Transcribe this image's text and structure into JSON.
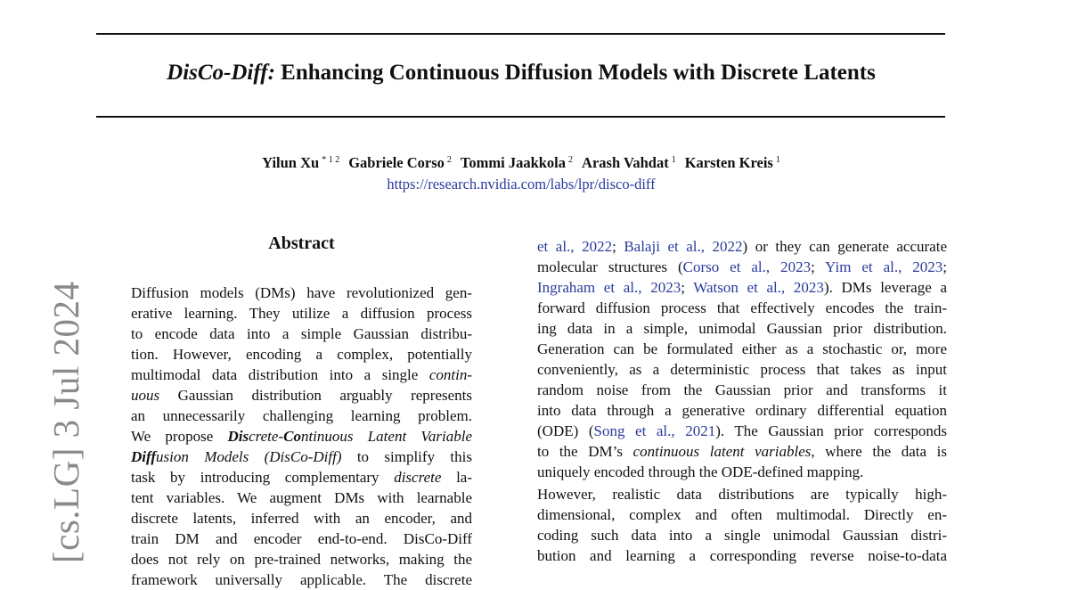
{
  "arxiv_stamp": "[cs.LG]  3 Jul 2024",
  "title": {
    "italic_part": "DisCo-Diff:",
    "rest": " Enhancing Continuous Diffusion Models with Discrete Latents"
  },
  "authors": [
    {
      "name": "Yilun Xu",
      "sup": "* 1 2"
    },
    {
      "name": "Gabriele Corso",
      "sup": "2"
    },
    {
      "name": "Tommi Jaakkola",
      "sup": "2"
    },
    {
      "name": "Arash Vahdat",
      "sup": "1"
    },
    {
      "name": "Karsten Kreis",
      "sup": "1"
    }
  ],
  "project_url": "https://research.nvidia.com/labs/lpr/disco-diff",
  "abstract_heading": "Abstract",
  "abstract_lines": [
    [
      [
        "n",
        "Diffusion models (DMs) have revolutionized gen-"
      ]
    ],
    [
      [
        "n",
        "erative learning. They utilize a diffusion process"
      ]
    ],
    [
      [
        "n",
        "to encode data into a simple Gaussian distribu-"
      ]
    ],
    [
      [
        "n",
        "tion. However, encoding a complex, potentially"
      ]
    ],
    [
      [
        "n",
        "multimodal data distribution into a single "
      ],
      [
        "i",
        "contin-"
      ]
    ],
    [
      [
        "i",
        "uous"
      ],
      [
        "n",
        " Gaussian distribution arguably represents"
      ]
    ],
    [
      [
        "n",
        "an unnecessarily challenging learning problem."
      ]
    ],
    [
      [
        "n",
        "We propose "
      ],
      [
        "bi",
        "Dis"
      ],
      [
        "i",
        "crete-"
      ],
      [
        "bi",
        "Co"
      ],
      [
        "i",
        "ntinuous Latent Variable"
      ]
    ],
    [
      [
        "bi",
        "Diff"
      ],
      [
        "i",
        "usion Models (DisCo-Diff)"
      ],
      [
        "n",
        " to simplify this"
      ]
    ],
    [
      [
        "n",
        "task by introducing complementary "
      ],
      [
        "i",
        "discrete"
      ],
      [
        "n",
        " la-"
      ]
    ],
    [
      [
        "n",
        "tent variables. We augment DMs with learnable"
      ]
    ],
    [
      [
        "n",
        "discrete latents, inferred with an encoder, and"
      ]
    ],
    [
      [
        "n",
        "train DM and encoder end-to-end.  DisCo-Diff"
      ]
    ],
    [
      [
        "n",
        "does not rely on pre-trained networks, making the"
      ]
    ],
    [
      [
        "n",
        "framework universally applicable.  The discrete"
      ]
    ]
  ],
  "intro_paragraphs": [
    [
      [
        [
          "c",
          "et al., 2022"
        ],
        [
          "n",
          "; "
        ],
        [
          "c",
          "Balaji et al., 2022"
        ],
        [
          "n",
          ") or they can generate accurate"
        ]
      ],
      [
        [
          "n",
          "molecular structures ("
        ],
        [
          "c",
          "Corso et al., 2023"
        ],
        [
          "n",
          "; "
        ],
        [
          "c",
          "Yim et al., 2023"
        ],
        [
          "n",
          ";"
        ]
      ],
      [
        [
          "c",
          "Ingraham et al., 2023"
        ],
        [
          "n",
          "; "
        ],
        [
          "c",
          "Watson et al., 2023"
        ],
        [
          "n",
          "). DMs leverage a"
        ]
      ],
      [
        [
          "n",
          "forward diffusion process that effectively encodes the train-"
        ]
      ],
      [
        [
          "n",
          "ing data in a simple, unimodal Gaussian prior distribution."
        ]
      ],
      [
        [
          "n",
          "Generation can be formulated either as a stochastic or, more"
        ]
      ],
      [
        [
          "n",
          "conveniently, as a deterministic process that takes as input"
        ]
      ],
      [
        [
          "n",
          "random noise from the Gaussian prior and transforms it"
        ]
      ],
      [
        [
          "n",
          "into data through a generative ordinary differential equation"
        ]
      ],
      [
        [
          "n",
          "(ODE) ("
        ],
        [
          "c",
          "Song et al., 2021"
        ],
        [
          "n",
          "). The Gaussian prior corresponds"
        ]
      ],
      [
        [
          "n",
          "to the DM’s "
        ],
        [
          "i",
          "continuous latent variables"
        ],
        [
          "n",
          ", where the data is"
        ]
      ],
      [
        [
          "n",
          "uniquely encoded through the ODE-defined mapping."
        ]
      ]
    ],
    [
      [
        [
          "n",
          "However, realistic data distributions are typically high-"
        ]
      ],
      [
        [
          "n",
          "dimensional, complex and often multimodal. Directly en-"
        ]
      ],
      [
        [
          "n",
          "coding such data into a single unimodal Gaussian distri-"
        ]
      ],
      [
        [
          "n",
          "bution and learning a corresponding reverse noise-to-data"
        ]
      ]
    ]
  ],
  "colors": {
    "citation": "#2a3b9c",
    "stamp": "#8a8a8a",
    "text": "#111111"
  }
}
